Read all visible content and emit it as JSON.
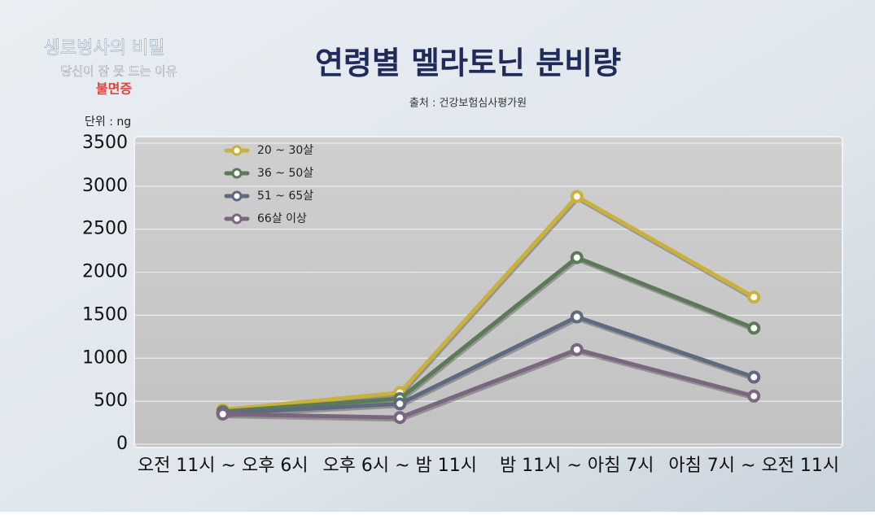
{
  "branding": {
    "program": "생로병사의 비밀",
    "episode": "당신이 잠 못 드는 이유",
    "topic": "불면증"
  },
  "chart_data": {
    "type": "line",
    "title": "연령별 멜라토닌 분비량",
    "subtitle": "출처 : 건강보험심사평가원",
    "unit": "단위 : ng",
    "categories": [
      "오전 11시 ~ 오후 6시",
      "오후 6시 ~ 밤 11시",
      "밤 11시 ~ 아침 7시",
      "아침 7시 ~ 오전 11시"
    ],
    "series": [
      {
        "name": "20 ~ 30살",
        "color": "#c9b13c",
        "values": [
          400,
          600,
          2880,
          1710
        ]
      },
      {
        "name": "36 ~ 50살",
        "color": "#5c7a58",
        "values": [
          380,
          530,
          2170,
          1350
        ]
      },
      {
        "name": "51 ~ 65살",
        "color": "#5f6a80",
        "values": [
          360,
          470,
          1480,
          780
        ]
      },
      {
        "name": "66살 이상",
        "color": "#7b6680",
        "values": [
          350,
          310,
          1100,
          560
        ]
      }
    ],
    "ylim": [
      0,
      3500
    ],
    "yticks": [
      0,
      500,
      1000,
      1500,
      2000,
      2500,
      3000,
      3500
    ],
    "grid": true,
    "legend": "top-left"
  }
}
